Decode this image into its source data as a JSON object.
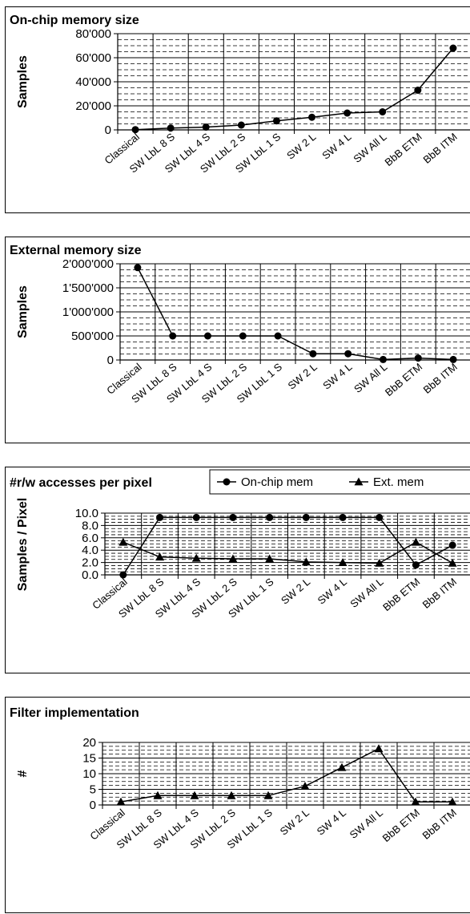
{
  "chart_data": [
    {
      "type": "line",
      "title": "On-chip memory size",
      "xlabel": "",
      "ylabel": "Samples",
      "ylim": [
        0,
        80000
      ],
      "y_ticks": [
        "0",
        "20'000",
        "40'000",
        "60'000",
        "80'000"
      ],
      "y_tick_values": [
        0,
        20000,
        40000,
        60000,
        80000
      ],
      "grid": true,
      "categories": [
        "Classical",
        "SW LbL 8 S",
        "SW LbL 4 S",
        "SW LbL 2 S",
        "SW LbL 1 S",
        "SW 2 L",
        "SW 4 L",
        "SW All L",
        "BbB ETM",
        "BbB ITM"
      ],
      "series": [
        {
          "marker": "circle",
          "values": [
            200,
            1500,
            2300,
            4000,
            7500,
            10500,
            14000,
            15000,
            33000,
            68000
          ]
        }
      ]
    },
    {
      "type": "line",
      "title": "External memory size",
      "xlabel": "",
      "ylabel": "Samples",
      "ylim": [
        0,
        2000000
      ],
      "y_ticks": [
        "0",
        "500'000",
        "1'000'000",
        "1'500'000",
        "2'000'000"
      ],
      "y_tick_values": [
        0,
        500000,
        1000000,
        1500000,
        2000000
      ],
      "grid": true,
      "categories": [
        "Classical",
        "SW LbL 8 S",
        "SW LbL 4 S",
        "SW LbL 2 S",
        "SW LbL 1 S",
        "SW 2 L",
        "SW 4 L",
        "SW All L",
        "BbB ETM",
        "BbB ITM"
      ],
      "series": [
        {
          "marker": "circle",
          "values": [
            1920000,
            500000,
            500000,
            500000,
            500000,
            130000,
            130000,
            10000,
            40000,
            10000
          ]
        }
      ]
    },
    {
      "type": "line",
      "title": "#r/w accesses per pixel",
      "xlabel": "",
      "ylabel": "Samples / Pixel",
      "ylim": [
        0,
        10
      ],
      "y_ticks": [
        "0.0",
        "2.0",
        "4.0",
        "6.0",
        "8.0",
        "10.0"
      ],
      "y_tick_values": [
        0,
        2,
        4,
        6,
        8,
        10
      ],
      "grid": true,
      "legend": "top-right",
      "categories": [
        "Classical",
        "SW LbL 8 S",
        "SW LbL 4 S",
        "SW LbL 2 S",
        "SW LbL 1 S",
        "SW 2 L",
        "SW 4 L",
        "SW All L",
        "BbB ETM",
        "BbB ITM"
      ],
      "series": [
        {
          "name": "On-chip mem",
          "marker": "circle",
          "values": [
            0.0,
            9.3,
            9.3,
            9.3,
            9.3,
            9.3,
            9.3,
            9.3,
            1.6,
            4.8
          ]
        },
        {
          "name": "Ext. mem",
          "marker": "triangle",
          "values": [
            5.3,
            2.9,
            2.7,
            2.6,
            2.6,
            2.1,
            2.0,
            1.9,
            5.3,
            1.9
          ]
        }
      ]
    },
    {
      "type": "line",
      "title": "Filter implementation",
      "xlabel": "",
      "ylabel": "#",
      "ylim": [
        0,
        20
      ],
      "y_ticks": [
        "0",
        "5",
        "10",
        "15",
        "20"
      ],
      "y_tick_values": [
        0,
        5,
        10,
        15,
        20
      ],
      "grid": true,
      "categories": [
        "Classical",
        "SW LbL 8 S",
        "SW LbL 4 S",
        "SW LbL 2 S",
        "SW LbL 1 S",
        "SW 2 L",
        "SW 4 L",
        "SW All L",
        "BbB ETM",
        "BbB ITM"
      ],
      "series": [
        {
          "marker": "triangle",
          "values": [
            1,
            3,
            3,
            3,
            3,
            6,
            12,
            18,
            1,
            1
          ]
        }
      ]
    }
  ]
}
